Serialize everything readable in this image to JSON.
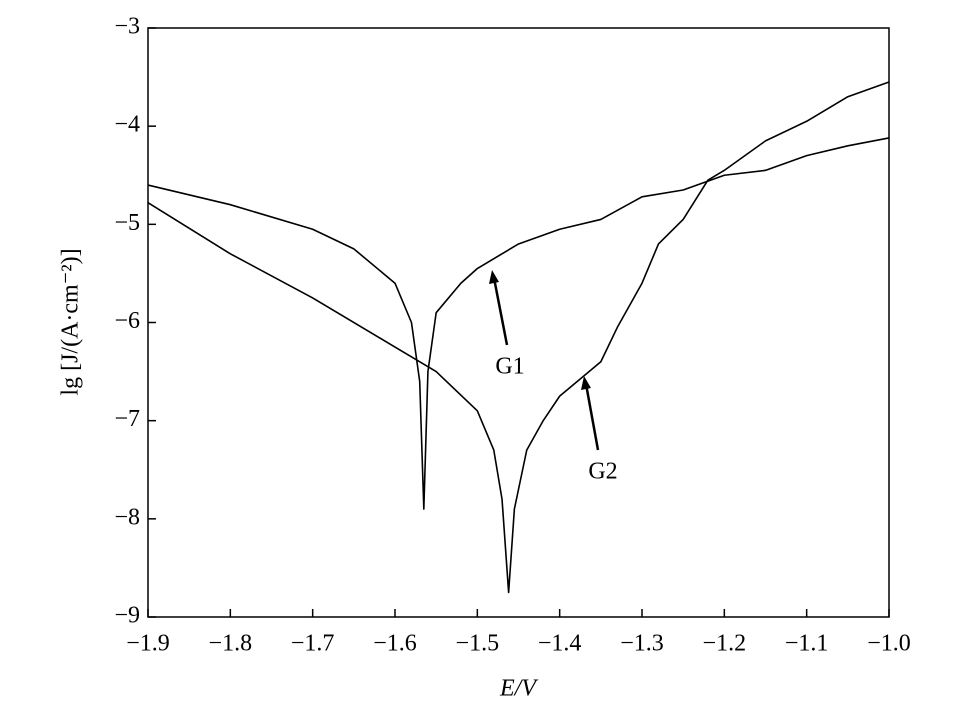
{
  "chart_data": {
    "type": "line",
    "x_label": "E/V",
    "y_label": "lg [J/(A·cm⁻²)]",
    "xlim": [
      -1.9,
      -1.0
    ],
    "ylim": [
      -9,
      -3
    ],
    "xticks": [
      {
        "value": -1.9,
        "label": "−1.9"
      },
      {
        "value": -1.8,
        "label": "−1.8"
      },
      {
        "value": -1.7,
        "label": "−1.7"
      },
      {
        "value": -1.6,
        "label": "−1.6"
      },
      {
        "value": -1.5,
        "label": "−1.5"
      },
      {
        "value": -1.4,
        "label": "−1.4"
      },
      {
        "value": -1.3,
        "label": "−1.3"
      },
      {
        "value": -1.2,
        "label": "−1.2"
      },
      {
        "value": -1.1,
        "label": "−1.1"
      },
      {
        "value": -1.0,
        "label": "−1.0"
      }
    ],
    "yticks": [
      {
        "value": -3,
        "label": "−3"
      },
      {
        "value": -4,
        "label": "−4"
      },
      {
        "value": -5,
        "label": "−5"
      },
      {
        "value": -6,
        "label": "−6"
      },
      {
        "value": -7,
        "label": "−7"
      },
      {
        "value": -8,
        "label": "−8"
      },
      {
        "value": -9,
        "label": "−9"
      }
    ],
    "grid": false,
    "series": [
      {
        "name": "G1",
        "color": "#000000",
        "x": [
          -1.9,
          -1.8,
          -1.7,
          -1.65,
          -1.6,
          -1.58,
          -1.57,
          -1.565,
          -1.56,
          -1.55,
          -1.52,
          -1.5,
          -1.45,
          -1.4,
          -1.35,
          -1.3,
          -1.25,
          -1.2,
          -1.15,
          -1.1,
          -1.05,
          -1.0
        ],
        "values": [
          -4.6,
          -4.8,
          -5.05,
          -5.25,
          -5.6,
          -6.0,
          -6.6,
          -7.9,
          -6.5,
          -5.9,
          -5.6,
          -5.45,
          -5.2,
          -5.05,
          -4.95,
          -4.72,
          -4.65,
          -4.5,
          -4.45,
          -4.3,
          -4.2,
          -4.12
        ]
      },
      {
        "name": "G2",
        "color": "#000000",
        "x": [
          -1.9,
          -1.8,
          -1.7,
          -1.6,
          -1.55,
          -1.5,
          -1.48,
          -1.47,
          -1.462,
          -1.455,
          -1.44,
          -1.42,
          -1.4,
          -1.35,
          -1.33,
          -1.3,
          -1.28,
          -1.25,
          -1.22,
          -1.2,
          -1.15,
          -1.1,
          -1.05,
          -1.0
        ],
        "values": [
          -4.78,
          -5.3,
          -5.75,
          -6.25,
          -6.5,
          -6.9,
          -7.3,
          -7.8,
          -8.75,
          -7.9,
          -7.3,
          -7.0,
          -6.75,
          -6.4,
          -6.05,
          -5.6,
          -5.2,
          -4.95,
          -4.55,
          -4.45,
          -4.15,
          -3.95,
          -3.7,
          -3.55
        ]
      }
    ]
  }
}
